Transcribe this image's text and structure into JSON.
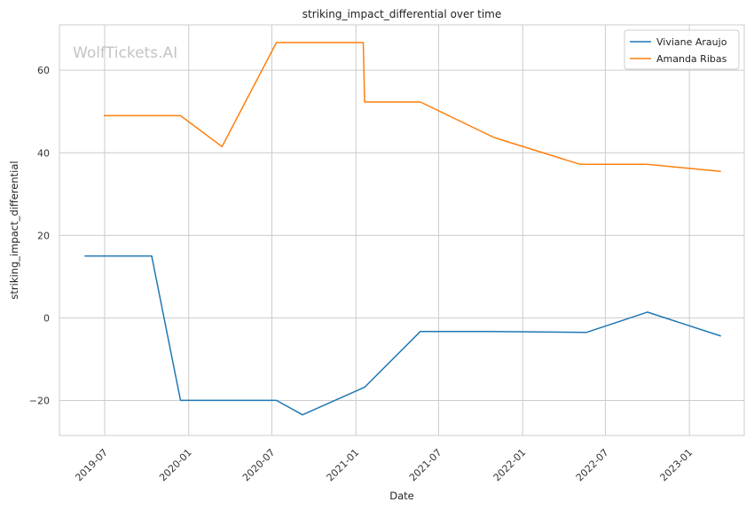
{
  "chart_data": {
    "type": "line",
    "title": "striking_impact_differential over time",
    "xlabel": "Date",
    "ylabel": "striking_impact_differential",
    "watermark": "WolfTickets.AI",
    "x_axis": {
      "scale": "date",
      "range": [
        "2019-03-24",
        "2023-05-01"
      ],
      "ticks": [
        "2019-07-01",
        "2020-01-01",
        "2020-07-01",
        "2021-01-01",
        "2021-07-01",
        "2022-01-01",
        "2022-07-01",
        "2023-01-01"
      ],
      "tick_labels": [
        "2019-07",
        "2020-01",
        "2020-07",
        "2021-01",
        "2021-07",
        "2022-01",
        "2022-07",
        "2023-01"
      ]
    },
    "y_axis": {
      "range": [
        -28.5,
        71
      ],
      "ticks": [
        -20,
        0,
        20,
        40,
        60
      ],
      "tick_labels": [
        "−20",
        "0",
        "20",
        "40",
        "60"
      ]
    },
    "grid": true,
    "legend_position": "top-right",
    "series": [
      {
        "name": "Viviane Araujo",
        "color": "#1f77b4",
        "points": [
          {
            "x": "2019-05-18",
            "y": 15
          },
          {
            "x": "2019-10-12",
            "y": 15
          },
          {
            "x": "2019-12-14",
            "y": -20
          },
          {
            "x": "2020-07-11",
            "y": -20
          },
          {
            "x": "2020-09-06",
            "y": -23.5
          },
          {
            "x": "2021-01-20",
            "y": -16.8
          },
          {
            "x": "2021-05-22",
            "y": -3.3
          },
          {
            "x": "2021-10-16",
            "y": -3.3
          },
          {
            "x": "2022-05-21",
            "y": -3.5
          },
          {
            "x": "2022-10-01",
            "y": 1.4
          },
          {
            "x": "2023-03-11",
            "y": -4.4
          }
        ]
      },
      {
        "name": "Amanda Ribas",
        "color": "#ff7f0e",
        "points": [
          {
            "x": "2019-06-29",
            "y": 49
          },
          {
            "x": "2019-12-14",
            "y": 49
          },
          {
            "x": "2020-03-14",
            "y": 41.5
          },
          {
            "x": "2020-07-11",
            "y": 66.7
          },
          {
            "x": "2021-01-17",
            "y": 66.7
          },
          {
            "x": "2021-01-20",
            "y": 52.3
          },
          {
            "x": "2021-05-22",
            "y": 52.3
          },
          {
            "x": "2021-10-30",
            "y": 43.7
          },
          {
            "x": "2022-05-07",
            "y": 37.2
          },
          {
            "x": "2022-10-01",
            "y": 37.2
          },
          {
            "x": "2023-03-11",
            "y": 35.5
          }
        ]
      }
    ]
  }
}
